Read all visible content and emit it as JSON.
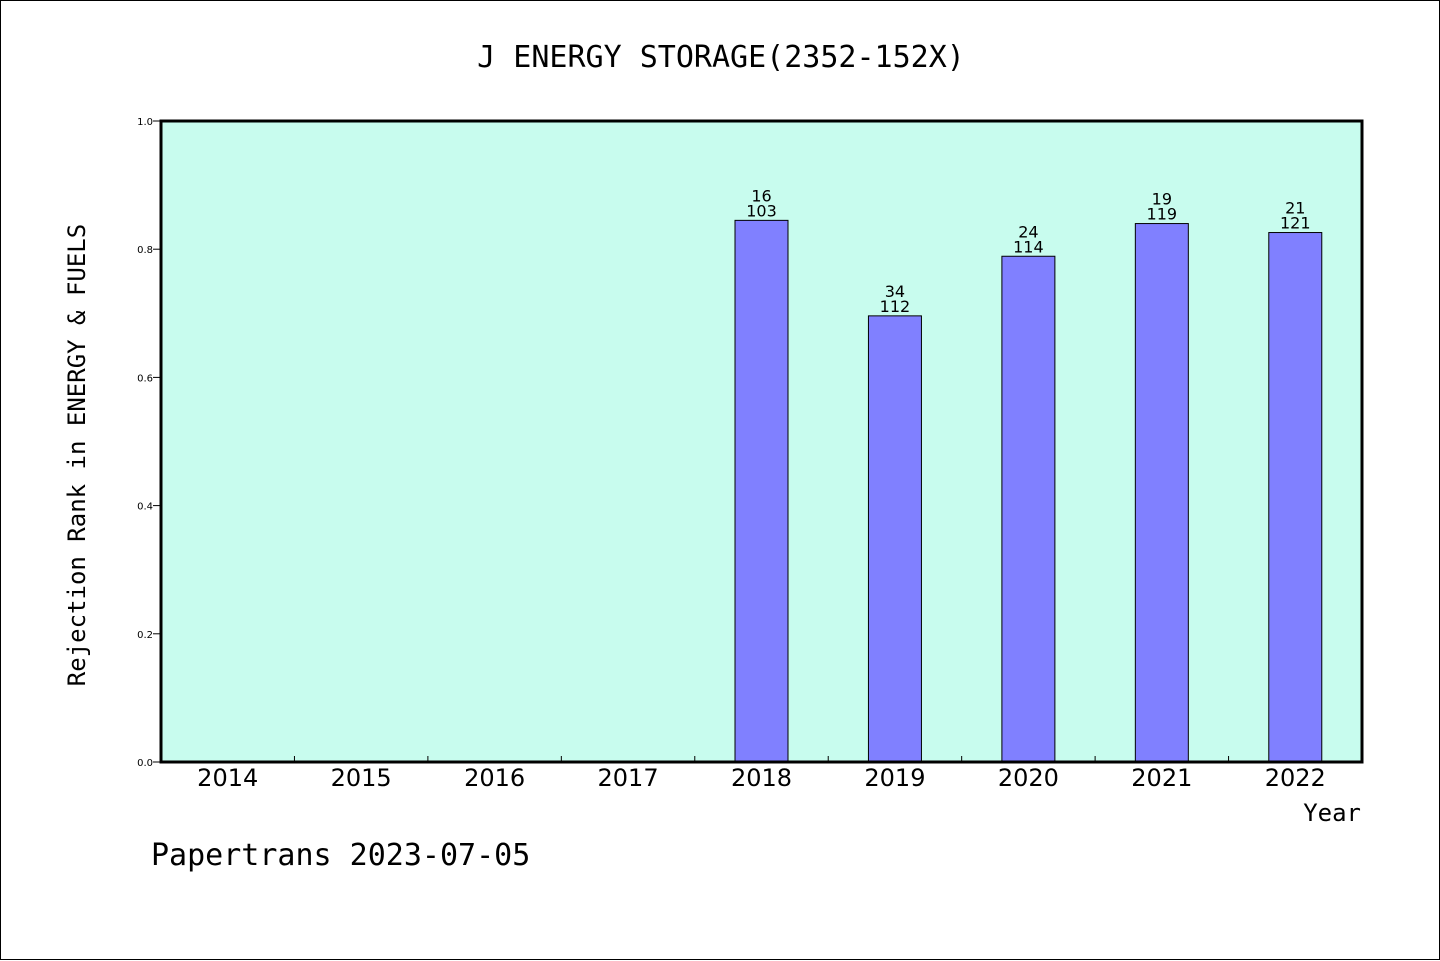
{
  "chart_data": {
    "type": "bar",
    "title": "J ENERGY STORAGE(2352-152X)",
    "ylabel": "Rejection Rank in ENERGY & FUELS",
    "xlabel": "Year",
    "ylim": [
      0,
      1.0
    ],
    "yticks": [
      "0.0",
      "0.2",
      "0.4",
      "0.6",
      "0.8",
      "1.0"
    ],
    "ytick_values": [
      0,
      0.2,
      0.4,
      0.6,
      0.8,
      1.0
    ],
    "categories": [
      "2014",
      "2015",
      "2016",
      "2017",
      "2018",
      "2019",
      "2020",
      "2021",
      "2022"
    ],
    "values": [
      null,
      null,
      null,
      null,
      0.845,
      0.696,
      0.789,
      0.84,
      0.826
    ],
    "labels_top": [
      "",
      "",
      "",
      "",
      "16",
      "34",
      "24",
      "19",
      "21"
    ],
    "labels_bottom": [
      "",
      "",
      "",
      "",
      "103",
      "112",
      "114",
      "119",
      "121"
    ],
    "plot_background": "#c8fcee",
    "bar_color": "#8080ff",
    "grid": false
  },
  "footer": {
    "watermark": "Papertrans 2023-07-05"
  }
}
